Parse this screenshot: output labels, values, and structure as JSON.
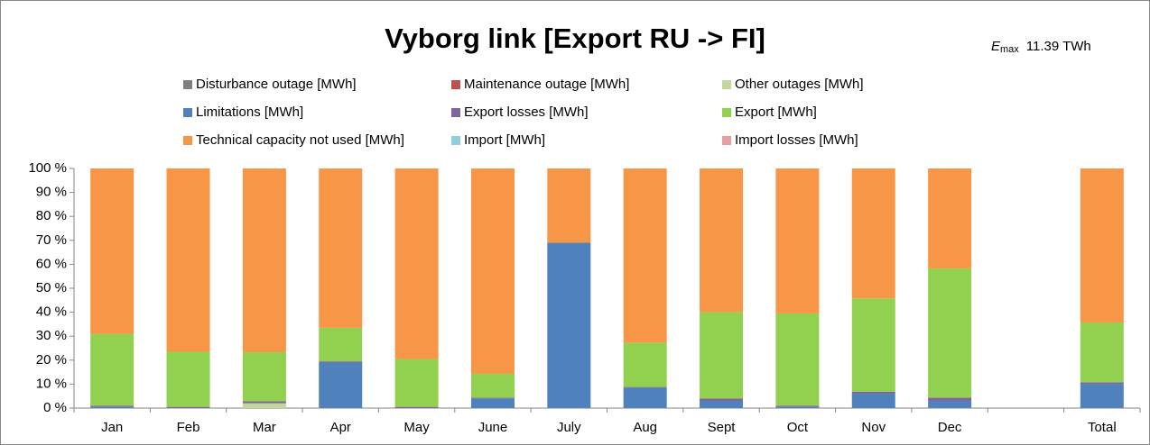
{
  "chart_data": {
    "type": "stacked_bar",
    "title": "Vyborg link [Export RU -> FI]",
    "annotation": {
      "symbol": "E",
      "subscript": "max",
      "text": "11.39 TWh"
    },
    "categories": [
      "Jan",
      "Feb",
      "Mar",
      "Apr",
      "May",
      "June",
      "July",
      "Aug",
      "Sept",
      "Oct",
      "Nov",
      "Dec",
      null,
      "Total"
    ],
    "series": [
      {
        "name": "Disturbance outage [MWh]",
        "color": "#7f7f7f",
        "values": [
          0,
          0,
          0,
          0,
          0,
          0,
          0,
          0,
          0,
          0,
          0,
          0,
          null,
          0
        ]
      },
      {
        "name": "Maintenance outage [MWh]",
        "color": "#c0504d",
        "values": [
          0,
          0,
          0,
          0,
          0,
          0,
          0,
          0,
          0,
          0,
          0,
          0,
          null,
          0
        ]
      },
      {
        "name": "Other outages [MWh]",
        "color": "#c3d69b",
        "values": [
          0,
          0,
          2,
          0,
          0,
          0,
          0,
          0,
          0,
          0,
          0,
          0,
          null,
          0
        ]
      },
      {
        "name": "Limitations [MWh]",
        "color": "#4f81bd",
        "values": [
          0.5,
          0,
          0,
          19,
          0,
          4,
          69,
          8.5,
          3,
          0.5,
          6,
          3,
          null,
          10
        ]
      },
      {
        "name": "Export losses [MWh]",
        "color": "#8064a2",
        "values": [
          0.5,
          0.5,
          0.8,
          0.5,
          0.5,
          0.3,
          0,
          0.3,
          1,
          0.5,
          0.8,
          1.3,
          null,
          0.7
        ]
      },
      {
        "name": "Export [MWh]",
        "color": "#92d050",
        "values": [
          30,
          23,
          20.5,
          14,
          20,
          10,
          0,
          18.5,
          36,
          38.5,
          39,
          54,
          null,
          25
        ]
      },
      {
        "name": "Technical capacity not used [MWh]",
        "color": "#f79646",
        "values": [
          69,
          76.5,
          76.7,
          66.5,
          79.5,
          85.7,
          31,
          72.7,
          60,
          60.5,
          54.2,
          41.7,
          null,
          64.3
        ]
      },
      {
        "name": "Import [MWh]",
        "color": "#93cddd",
        "values": [
          0,
          0,
          0,
          0,
          0,
          0,
          0,
          0,
          0,
          0,
          0,
          0,
          null,
          0
        ]
      },
      {
        "name": "Import losses [MWh]",
        "color": "#e6a0a0",
        "values": [
          0,
          0,
          0,
          0,
          0,
          0,
          0,
          0,
          0,
          0,
          0,
          0,
          null,
          0
        ]
      }
    ],
    "ylim": [
      0,
      100
    ],
    "yticks": [
      {
        "value": 0,
        "label": "0 %"
      },
      {
        "value": 10,
        "label": "10 %"
      },
      {
        "value": 20,
        "label": "20 %"
      },
      {
        "value": 30,
        "label": "30 %"
      },
      {
        "value": 40,
        "label": "40 %"
      },
      {
        "value": 50,
        "label": "50 %"
      },
      {
        "value": 60,
        "label": "60 %"
      },
      {
        "value": 70,
        "label": "70 %"
      },
      {
        "value": 80,
        "label": "80 %"
      },
      {
        "value": 90,
        "label": "90 %"
      },
      {
        "value": 100,
        "label": "100 %"
      }
    ],
    "grid": false,
    "legend": "top"
  }
}
